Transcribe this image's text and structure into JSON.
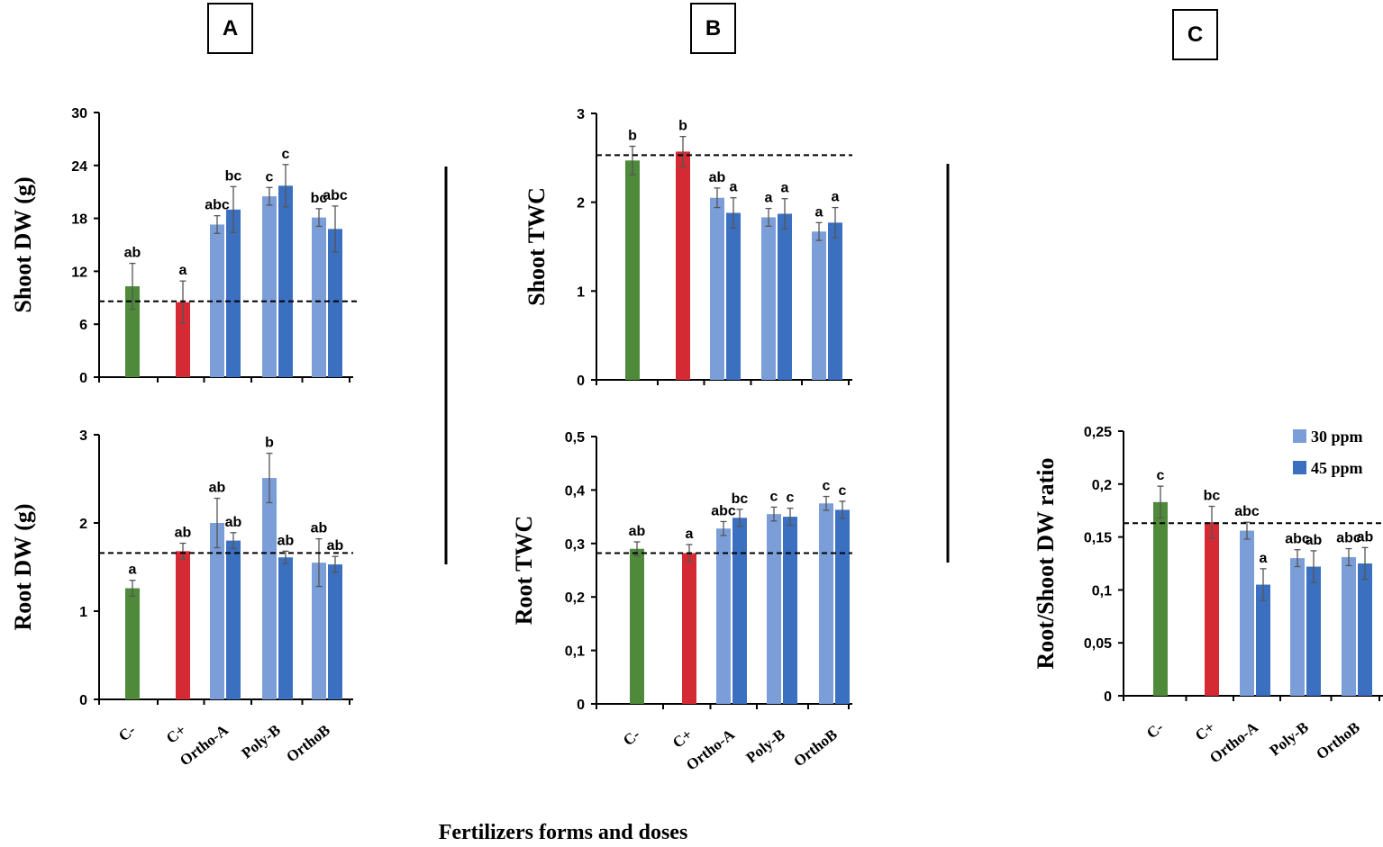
{
  "panels": {
    "a": "A",
    "b": "B",
    "c": "C"
  },
  "x_title": "Fertilizers forms and doses",
  "colors": {
    "c_minus": "#4e8a3a",
    "c_plus": "#d42a34",
    "ppm30": "#7b9ed9",
    "ppm45": "#3b6fc0"
  },
  "legend": {
    "ppm30": "30 ppm",
    "ppm45": "45 ppm"
  },
  "chart_data": [
    {
      "id": "shoot_dw",
      "type": "bar",
      "ylabel": "Shoot DW (g)",
      "ylim": [
        0,
        30
      ],
      "yticks": [
        "0",
        "6",
        "12",
        "18",
        "24",
        "30"
      ],
      "ytick_values": [
        0,
        6,
        12,
        18,
        24,
        30
      ],
      "categories": [
        "C-",
        "C+",
        "Ortho-A",
        "Poly-B",
        "OrthoB"
      ],
      "reference_line": 8.6,
      "bars": [
        {
          "category": "C-",
          "series": "control",
          "value": 10.3,
          "error": 2.6,
          "label": "ab"
        },
        {
          "category": "C+",
          "series": "control",
          "value": 8.5,
          "error": 2.4,
          "label": "a"
        },
        {
          "category": "Ortho-A",
          "series": "30 ppm",
          "value": 17.3,
          "error": 1.0,
          "label": "abc"
        },
        {
          "category": "Ortho-A",
          "series": "45 ppm",
          "value": 19.0,
          "error": 2.6,
          "label": "bc"
        },
        {
          "category": "Poly-B",
          "series": "30 ppm",
          "value": 20.5,
          "error": 1.0,
          "label": "c"
        },
        {
          "category": "Poly-B",
          "series": "45 ppm",
          "value": 21.7,
          "error": 2.4,
          "label": "c"
        },
        {
          "category": "OrthoB",
          "series": "30 ppm",
          "value": 18.1,
          "error": 1.0,
          "label": "bc"
        },
        {
          "category": "OrthoB",
          "series": "45 ppm",
          "value": 16.8,
          "error": 2.6,
          "label": "abc"
        }
      ]
    },
    {
      "id": "root_dw",
      "type": "bar",
      "ylabel": "Root DW (g)",
      "ylim": [
        0,
        3
      ],
      "yticks": [
        "0",
        "1",
        "2",
        "3"
      ],
      "ytick_values": [
        0,
        1,
        2,
        3
      ],
      "categories": [
        "C-",
        "C+",
        "Ortho-A",
        "Poly-B",
        "OrthoB"
      ],
      "reference_line": 1.66,
      "bars": [
        {
          "category": "C-",
          "series": "control",
          "value": 1.26,
          "error": 0.09,
          "label": "a"
        },
        {
          "category": "C+",
          "series": "control",
          "value": 1.68,
          "error": 0.09,
          "label": "ab"
        },
        {
          "category": "Ortho-A",
          "series": "30 ppm",
          "value": 2.0,
          "error": 0.28,
          "label": "ab"
        },
        {
          "category": "Ortho-A",
          "series": "45 ppm",
          "value": 1.8,
          "error": 0.09,
          "label": "ab"
        },
        {
          "category": "Poly-B",
          "series": "30 ppm",
          "value": 2.51,
          "error": 0.28,
          "label": "b"
        },
        {
          "category": "Poly-B",
          "series": "45 ppm",
          "value": 1.61,
          "error": 0.07,
          "label": "ab"
        },
        {
          "category": "OrthoB",
          "series": "30 ppm",
          "value": 1.55,
          "error": 0.27,
          "label": "ab"
        },
        {
          "category": "OrthoB",
          "series": "45 ppm",
          "value": 1.53,
          "error": 0.09,
          "label": "ab"
        }
      ]
    },
    {
      "id": "shoot_twc",
      "type": "bar",
      "ylabel": "Shoot TWC",
      "ylim": [
        0,
        3
      ],
      "yticks": [
        "0",
        "1",
        "2",
        "3"
      ],
      "ytick_values": [
        0,
        1,
        2,
        3
      ],
      "categories": [
        "C-",
        "C+",
        "Ortho-A",
        "Poly-B",
        "OrthoB"
      ],
      "reference_line": 2.53,
      "bars": [
        {
          "category": "C-",
          "series": "control",
          "value": 2.47,
          "error": 0.16,
          "label": "b"
        },
        {
          "category": "C+",
          "series": "control",
          "value": 2.57,
          "error": 0.17,
          "label": "b"
        },
        {
          "category": "Ortho-A",
          "series": "30 ppm",
          "value": 2.05,
          "error": 0.11,
          "label": "ab"
        },
        {
          "category": "Ortho-A",
          "series": "45 ppm",
          "value": 1.88,
          "error": 0.17,
          "label": "a"
        },
        {
          "category": "Poly-B",
          "series": "30 ppm",
          "value": 1.83,
          "error": 0.1,
          "label": "a"
        },
        {
          "category": "Poly-B",
          "series": "45 ppm",
          "value": 1.87,
          "error": 0.17,
          "label": "a"
        },
        {
          "category": "OrthoB",
          "series": "30 ppm",
          "value": 1.67,
          "error": 0.1,
          "label": "a"
        },
        {
          "category": "OrthoB",
          "series": "45 ppm",
          "value": 1.77,
          "error": 0.17,
          "label": "a"
        }
      ]
    },
    {
      "id": "root_twc",
      "type": "bar",
      "ylabel": "Root TWC",
      "ylim": [
        0,
        0.5
      ],
      "yticks": [
        "0",
        "0,1",
        "0,2",
        "0,3",
        "0,4",
        "0,5"
      ],
      "ytick_values": [
        0,
        0.1,
        0.2,
        0.3,
        0.4,
        0.5
      ],
      "categories": [
        "C-",
        "C+",
        "Ortho-A",
        "Poly-B",
        "OrthoB"
      ],
      "reference_line": 0.282,
      "bars": [
        {
          "category": "C-",
          "series": "control",
          "value": 0.29,
          "error": 0.013,
          "label": "ab"
        },
        {
          "category": "C+",
          "series": "control",
          "value": 0.282,
          "error": 0.016,
          "label": "a"
        },
        {
          "category": "Ortho-A",
          "series": "30 ppm",
          "value": 0.328,
          "error": 0.013,
          "label": "abc"
        },
        {
          "category": "Ortho-A",
          "series": "45 ppm",
          "value": 0.348,
          "error": 0.016,
          "label": "bc"
        },
        {
          "category": "Poly-B",
          "series": "30 ppm",
          "value": 0.355,
          "error": 0.013,
          "label": "c"
        },
        {
          "category": "Poly-B",
          "series": "45 ppm",
          "value": 0.35,
          "error": 0.016,
          "label": "c"
        },
        {
          "category": "OrthoB",
          "series": "30 ppm",
          "value": 0.375,
          "error": 0.013,
          "label": "c"
        },
        {
          "category": "OrthoB",
          "series": "45 ppm",
          "value": 0.363,
          "error": 0.016,
          "label": "c"
        }
      ]
    },
    {
      "id": "root_shoot_ratio",
      "type": "bar",
      "ylabel": "Root/Shoot DW ratio",
      "ylim": [
        0,
        0.25
      ],
      "yticks": [
        "0",
        "0,05",
        "0,1",
        "0,15",
        "0,2",
        "0,25"
      ],
      "ytick_values": [
        0,
        0.05,
        0.1,
        0.15,
        0.2,
        0.25
      ],
      "categories": [
        "C-",
        "C+",
        "Ortho-A",
        "Poly-B",
        "OrthoB"
      ],
      "reference_line": 0.163,
      "bars": [
        {
          "category": "C-",
          "series": "control",
          "value": 0.183,
          "error": 0.015,
          "label": "c"
        },
        {
          "category": "C+",
          "series": "control",
          "value": 0.164,
          "error": 0.015,
          "label": "bc"
        },
        {
          "category": "Ortho-A",
          "series": "30 ppm",
          "value": 0.156,
          "error": 0.008,
          "label": "abc"
        },
        {
          "category": "Ortho-A",
          "series": "45 ppm",
          "value": 0.105,
          "error": 0.015,
          "label": "a"
        },
        {
          "category": "Poly-B",
          "series": "30 ppm",
          "value": 0.13,
          "error": 0.008,
          "label": "abc"
        },
        {
          "category": "Poly-B",
          "series": "45 ppm",
          "value": 0.122,
          "error": 0.015,
          "label": "ab"
        },
        {
          "category": "OrthoB",
          "series": "30 ppm",
          "value": 0.131,
          "error": 0.008,
          "label": "abc"
        },
        {
          "category": "OrthoB",
          "series": "45 ppm",
          "value": 0.125,
          "error": 0.015,
          "label": "ab"
        }
      ]
    }
  ]
}
